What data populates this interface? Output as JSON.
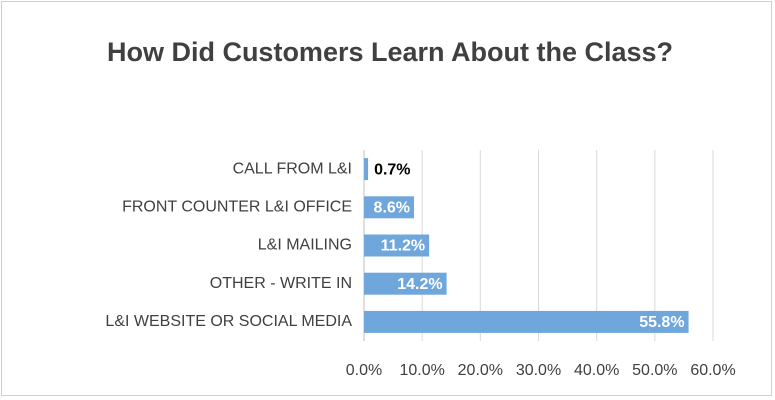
{
  "chart_data": {
    "type": "barh",
    "title": "How Did Customers Learn About the Class?",
    "categories": [
      "CALL FROM L&I",
      "FRONT COUNTER L&I OFFICE",
      "L&I MAILING",
      "OTHER - WRITE IN",
      "L&I WEBSITE  OR SOCIAL MEDIA"
    ],
    "values": [
      0.7,
      8.6,
      11.2,
      14.2,
      55.8
    ],
    "value_labels": [
      "0.7%",
      "8.6%",
      "11.2%",
      "14.2%",
      "55.8%"
    ],
    "color": "#6fa6dc",
    "xlim": [
      0,
      60
    ],
    "xticks": [
      {
        "value": 0,
        "label": "0.0%"
      },
      {
        "value": 10,
        "label": "10.0%"
      },
      {
        "value": 20,
        "label": "20.0%"
      },
      {
        "value": 30,
        "label": "30.0%"
      },
      {
        "value": 40,
        "label": "40.0%"
      },
      {
        "value": 50,
        "label": "50.0%"
      },
      {
        "value": 60,
        "label": "60.0%"
      }
    ],
    "grid": true
  }
}
